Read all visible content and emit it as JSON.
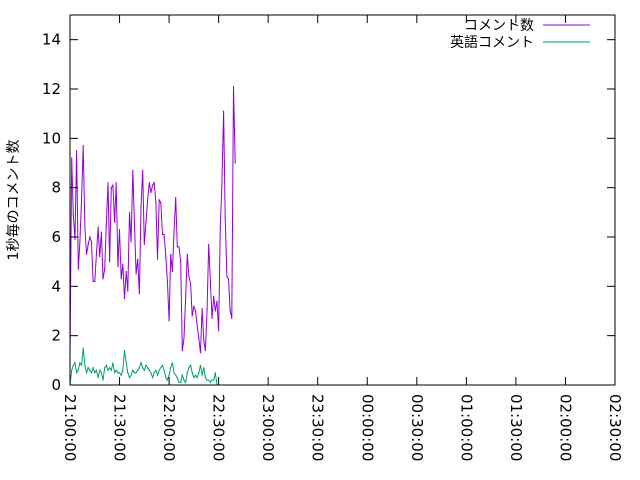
{
  "chart_data": {
    "type": "line",
    "ylabel": "1秒毎のコメント数",
    "xlabel": "",
    "x_range": [
      "21:00:00",
      "02:30:00"
    ],
    "ylim": [
      0,
      15
    ],
    "y_ticks": [
      0,
      2,
      4,
      6,
      8,
      10,
      12,
      14
    ],
    "x_ticks": [
      "21:00:00",
      "21:30:00",
      "22:00:00",
      "22:30:00",
      "23:00:00",
      "23:30:00",
      "00:00:00",
      "00:30:00",
      "01:00:00",
      "01:30:00",
      "02:00:00",
      "02:30:00"
    ],
    "legend_position": "top-right",
    "grid": false,
    "series": [
      {
        "name": "コメント数",
        "color": "#9400d3",
        "points": [
          [
            "21:00:00",
            1.0
          ],
          [
            "21:01:00",
            9.2
          ],
          [
            "21:02:00",
            6.9
          ],
          [
            "21:03:00",
            5.9
          ],
          [
            "21:04:00",
            9.5
          ],
          [
            "21:05:00",
            4.7
          ],
          [
            "21:06:00",
            5.8
          ],
          [
            "21:07:00",
            7.6
          ],
          [
            "21:08:00",
            9.7
          ],
          [
            "21:09:00",
            6.4
          ],
          [
            "21:10:00",
            5.3
          ],
          [
            "21:11:00",
            5.7
          ],
          [
            "21:12:00",
            6.0
          ],
          [
            "21:13:00",
            5.8
          ],
          [
            "21:14:00",
            4.2
          ],
          [
            "21:15:00",
            4.2
          ],
          [
            "21:16:00",
            5.3
          ],
          [
            "21:17:00",
            6.4
          ],
          [
            "21:18:00",
            5.2
          ],
          [
            "21:19:00",
            6.2
          ],
          [
            "21:20:00",
            4.3
          ],
          [
            "21:21:00",
            4.7
          ],
          [
            "21:22:00",
            6.5
          ],
          [
            "21:23:00",
            8.2
          ],
          [
            "21:24:00",
            5.0
          ],
          [
            "21:25:00",
            8.0
          ],
          [
            "21:26:00",
            8.1
          ],
          [
            "21:27:00",
            6.6
          ],
          [
            "21:28:00",
            8.2
          ],
          [
            "21:29:00",
            4.8
          ],
          [
            "21:30:00",
            6.3
          ],
          [
            "21:31:00",
            4.3
          ],
          [
            "21:32:00",
            4.9
          ],
          [
            "21:33:00",
            3.5
          ],
          [
            "21:34:00",
            4.6
          ],
          [
            "21:35:00",
            3.8
          ],
          [
            "21:36:00",
            7.0
          ],
          [
            "21:37:00",
            5.8
          ],
          [
            "21:38:00",
            8.7
          ],
          [
            "21:39:00",
            6.6
          ],
          [
            "21:40:00",
            4.5
          ],
          [
            "21:41:00",
            5.1
          ],
          [
            "21:42:00",
            3.7
          ],
          [
            "21:43:00",
            7.2
          ],
          [
            "21:44:00",
            8.7
          ],
          [
            "21:45:00",
            5.7
          ],
          [
            "21:46:00",
            6.6
          ],
          [
            "21:47:00",
            7.5
          ],
          [
            "21:48:00",
            8.2
          ],
          [
            "21:49:00",
            7.8
          ],
          [
            "21:50:00",
            8.1
          ],
          [
            "21:51:00",
            8.2
          ],
          [
            "21:52:00",
            7.4
          ],
          [
            "21:53:00",
            5.1
          ],
          [
            "21:54:00",
            7.5
          ],
          [
            "21:55:00",
            7.4
          ],
          [
            "21:56:00",
            6.1
          ],
          [
            "21:57:00",
            6.1
          ],
          [
            "21:58:00",
            5.2
          ],
          [
            "21:59:00",
            4.2
          ],
          [
            "22:00:00",
            2.6
          ],
          [
            "22:01:00",
            5.3
          ],
          [
            "22:02:00",
            4.6
          ],
          [
            "22:03:00",
            6.2
          ],
          [
            "22:04:00",
            7.6
          ],
          [
            "22:05:00",
            5.6
          ],
          [
            "22:06:00",
            5.6
          ],
          [
            "22:07:00",
            5.0
          ],
          [
            "22:08:00",
            1.4
          ],
          [
            "22:09:00",
            1.9
          ],
          [
            "22:10:00",
            3.5
          ],
          [
            "22:11:00",
            5.3
          ],
          [
            "22:12:00",
            4.4
          ],
          [
            "22:13:00",
            4.1
          ],
          [
            "22:14:00",
            2.8
          ],
          [
            "22:15:00",
            3.2
          ],
          [
            "22:16:00",
            3.0
          ],
          [
            "22:17:00",
            2.4
          ],
          [
            "22:18:00",
            1.9
          ],
          [
            "22:19:00",
            1.3
          ],
          [
            "22:20:00",
            3.1
          ],
          [
            "22:21:00",
            1.8
          ],
          [
            "22:22:00",
            1.4
          ],
          [
            "22:23:00",
            3.1
          ],
          [
            "22:24:00",
            5.7
          ],
          [
            "22:25:00",
            4.2
          ],
          [
            "22:26:00",
            2.7
          ],
          [
            "22:27:00",
            3.6
          ],
          [
            "22:28:00",
            3.0
          ],
          [
            "22:29:00",
            3.4
          ],
          [
            "22:30:00",
            2.2
          ],
          [
            "22:31:00",
            6.4
          ],
          [
            "22:32:00",
            8.1
          ],
          [
            "22:33:00",
            11.1
          ],
          [
            "22:34:00",
            6.8
          ],
          [
            "22:35:00",
            4.4
          ],
          [
            "22:36:00",
            4.3
          ],
          [
            "22:37:00",
            3.0
          ],
          [
            "22:38:00",
            2.7
          ],
          [
            "22:39:00",
            12.1
          ],
          [
            "22:40:00",
            9.0
          ]
        ]
      },
      {
        "name": "英語コメント",
        "color": "#009e73",
        "points": [
          [
            "21:00:00",
            0.0
          ],
          [
            "21:01:00",
            0.6
          ],
          [
            "21:02:00",
            0.8
          ],
          [
            "21:03:00",
            0.9
          ],
          [
            "21:04:00",
            0.5
          ],
          [
            "21:05:00",
            0.6
          ],
          [
            "21:06:00",
            0.9
          ],
          [
            "21:07:00",
            0.8
          ],
          [
            "21:08:00",
            1.5
          ],
          [
            "21:09:00",
            0.8
          ],
          [
            "21:10:00",
            0.5
          ],
          [
            "21:11:00",
            0.7
          ],
          [
            "21:12:00",
            0.6
          ],
          [
            "21:13:00",
            0.5
          ],
          [
            "21:14:00",
            0.7
          ],
          [
            "21:15:00",
            0.5
          ],
          [
            "21:16:00",
            0.6
          ],
          [
            "21:17:00",
            0.3
          ],
          [
            "21:18:00",
            0.6
          ],
          [
            "21:19:00",
            0.5
          ],
          [
            "21:20:00",
            0.2
          ],
          [
            "21:21:00",
            0.7
          ],
          [
            "21:22:00",
            0.8
          ],
          [
            "21:23:00",
            0.6
          ],
          [
            "21:24:00",
            0.7
          ],
          [
            "21:25:00",
            0.6
          ],
          [
            "21:26:00",
            0.9
          ],
          [
            "21:27:00",
            0.5
          ],
          [
            "21:28:00",
            0.6
          ],
          [
            "21:29:00",
            0.5
          ],
          [
            "21:30:00",
            0.5
          ],
          [
            "21:31:00",
            0.4
          ],
          [
            "21:32:00",
            0.6
          ],
          [
            "21:33:00",
            1.4
          ],
          [
            "21:34:00",
            0.9
          ],
          [
            "21:35:00",
            0.5
          ],
          [
            "21:36:00",
            0.3
          ],
          [
            "21:37:00",
            0.4
          ],
          [
            "21:38:00",
            0.6
          ],
          [
            "21:39:00",
            0.5
          ],
          [
            "21:40:00",
            0.5
          ],
          [
            "21:41:00",
            0.6
          ],
          [
            "21:42:00",
            0.7
          ],
          [
            "21:43:00",
            0.9
          ],
          [
            "21:44:00",
            0.7
          ],
          [
            "21:45:00",
            0.6
          ],
          [
            "21:46:00",
            0.8
          ],
          [
            "21:47:00",
            0.7
          ],
          [
            "21:48:00",
            0.6
          ],
          [
            "21:49:00",
            0.5
          ],
          [
            "21:50:00",
            0.3
          ],
          [
            "21:51:00",
            0.5
          ],
          [
            "21:52:00",
            0.6
          ],
          [
            "21:53:00",
            0.4
          ],
          [
            "21:54:00",
            0.6
          ],
          [
            "21:55:00",
            0.7
          ],
          [
            "21:56:00",
            0.8
          ],
          [
            "21:57:00",
            0.6
          ],
          [
            "21:58:00",
            0.3
          ],
          [
            "21:59:00",
            0.2
          ],
          [
            "22:00:00",
            0.4
          ],
          [
            "22:01:00",
            0.7
          ],
          [
            "22:02:00",
            0.9
          ],
          [
            "22:03:00",
            0.5
          ],
          [
            "22:04:00",
            0.4
          ],
          [
            "22:05:00",
            0.3
          ],
          [
            "22:06:00",
            0.1
          ],
          [
            "22:07:00",
            0.1
          ],
          [
            "22:08:00",
            0.4
          ],
          [
            "22:09:00",
            0.2
          ],
          [
            "22:10:00",
            0.1
          ],
          [
            "22:11:00",
            0.5
          ],
          [
            "22:12:00",
            0.7
          ],
          [
            "22:13:00",
            0.8
          ],
          [
            "22:14:00",
            0.5
          ],
          [
            "22:15:00",
            0.3
          ],
          [
            "22:16:00",
            0.4
          ],
          [
            "22:17:00",
            0.3
          ],
          [
            "22:18:00",
            0.5
          ],
          [
            "22:19:00",
            0.8
          ],
          [
            "22:20:00",
            0.4
          ],
          [
            "22:21:00",
            0.7
          ],
          [
            "22:22:00",
            0.3
          ],
          [
            "22:23:00",
            0.2
          ],
          [
            "22:24:00",
            0.2
          ],
          [
            "22:25:00",
            0.1
          ],
          [
            "22:26:00",
            0.2
          ],
          [
            "22:27:00",
            0.2
          ],
          [
            "22:28:00",
            0.5
          ],
          [
            "22:29:00",
            0.0
          ]
        ]
      }
    ]
  }
}
